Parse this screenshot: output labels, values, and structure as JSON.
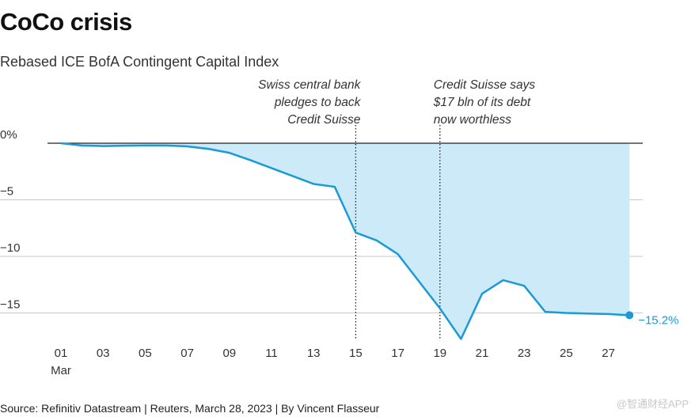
{
  "chart_data": {
    "type": "area",
    "title": "CoCo crisis",
    "subtitle": "Rebased ICE BofA Contingent Capital Index",
    "xlabel": "",
    "ylabel": "",
    "ylim": [
      -17.5,
      0.5
    ],
    "y_ticks": [
      {
        "value": 0,
        "label": "0%"
      },
      {
        "value": -5,
        "label": "−5"
      },
      {
        "value": -10,
        "label": "−10"
      },
      {
        "value": -15,
        "label": "−15"
      }
    ],
    "x_ticks": [
      {
        "day": 1,
        "label": "01",
        "sublabel": "Mar"
      },
      {
        "day": 3,
        "label": "03"
      },
      {
        "day": 5,
        "label": "05"
      },
      {
        "day": 7,
        "label": "07"
      },
      {
        "day": 9,
        "label": "09"
      },
      {
        "day": 11,
        "label": "11"
      },
      {
        "day": 13,
        "label": "13"
      },
      {
        "day": 15,
        "label": "15"
      },
      {
        "day": 17,
        "label": "17"
      },
      {
        "day": 19,
        "label": "19"
      },
      {
        "day": 21,
        "label": "21"
      },
      {
        "day": 23,
        "label": "23"
      },
      {
        "day": 25,
        "label": "25"
      },
      {
        "day": 27,
        "label": "27"
      }
    ],
    "series": [
      {
        "name": "Rebased ICE BofA Contingent Capital Index",
        "x": [
          1,
          2,
          3,
          4,
          5,
          6,
          7,
          8,
          9,
          10,
          11,
          12,
          13,
          14,
          15,
          16,
          17,
          18,
          19,
          20,
          21,
          22,
          23,
          24,
          25,
          26,
          27,
          28
        ],
        "values": [
          0,
          -0.2,
          -0.25,
          -0.22,
          -0.2,
          -0.2,
          -0.28,
          -0.5,
          -0.85,
          -1.5,
          -2.2,
          -2.9,
          -3.6,
          -3.85,
          -7.9,
          -8.6,
          -9.8,
          -12.2,
          -14.6,
          -17.3,
          -13.3,
          -12.1,
          -12.6,
          -14.9,
          -15.0,
          -15.05,
          -15.1,
          -15.2
        ],
        "color": "#1a9ad6",
        "fill": "#cdeaf8",
        "end_label": "−15.2%"
      }
    ],
    "annotations": [
      {
        "day": 15,
        "lines": [
          "Swiss central bank",
          "pledges to back",
          "Credit Suisse"
        ],
        "align": "right"
      },
      {
        "day": 19,
        "lines": [
          "Credit Suisse says",
          "$17 bln of its debt",
          "now worthless"
        ],
        "align": "left"
      }
    ],
    "grid": true,
    "legend": "none"
  },
  "footer": {
    "source": "Source: Refinitiv Datastream | Reuters, March 28, 2023 | By Vincent Flasseur",
    "watermark": "@智通财经APP"
  }
}
